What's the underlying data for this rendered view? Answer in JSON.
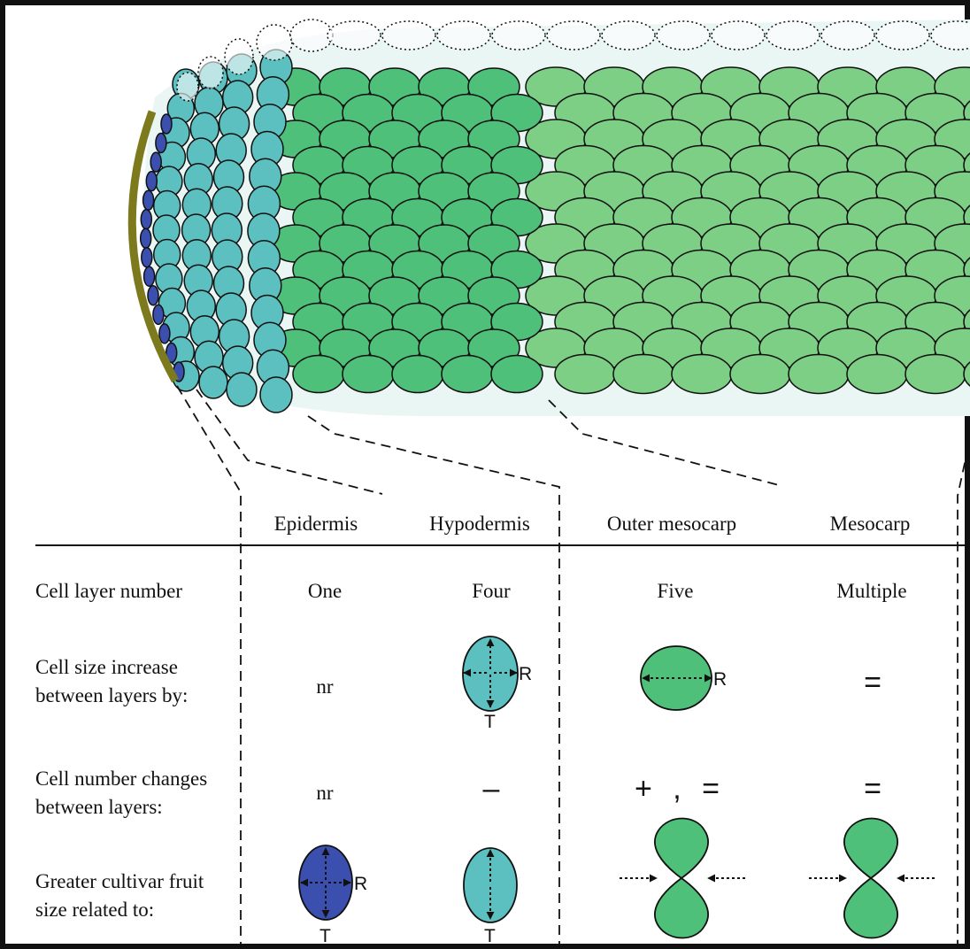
{
  "colors": {
    "epidermis": "#3a4fae",
    "hypodermis": "#5cbfc0",
    "outer_mesocarp": "#4fc079",
    "mesocarp": "#7ccf85",
    "cuticle": "#7d7a1e",
    "tissue_bg": "#eaf6f4",
    "outline": "#111111"
  },
  "columns": {
    "epidermis": "Epidermis",
    "hypodermis": "Hypodermis",
    "outer_mesocarp": "Outer mesocarp",
    "mesocarp": "Mesocarp"
  },
  "rows": {
    "layer_number": {
      "label": "Cell layer number",
      "epidermis": "One",
      "hypodermis": "Four",
      "outer_mesocarp": "Five",
      "mesocarp": "Multiple"
    },
    "size_increase": {
      "label_line1": "Cell size increase",
      "label_line2": "between layers by:",
      "epidermis": "nr",
      "mesocarp": "="
    },
    "number_changes": {
      "label_line1": "Cell number changes",
      "label_line2": "between layers:",
      "epidermis": "nr",
      "hypodermis": "–",
      "outer_mesocarp": "+ , =",
      "mesocarp": "="
    },
    "fruit_size": {
      "label_line1": "Greater cultivar fruit",
      "label_line2": "size related to:"
    }
  },
  "axis_labels": {
    "radial": "R",
    "tangential": "T"
  }
}
